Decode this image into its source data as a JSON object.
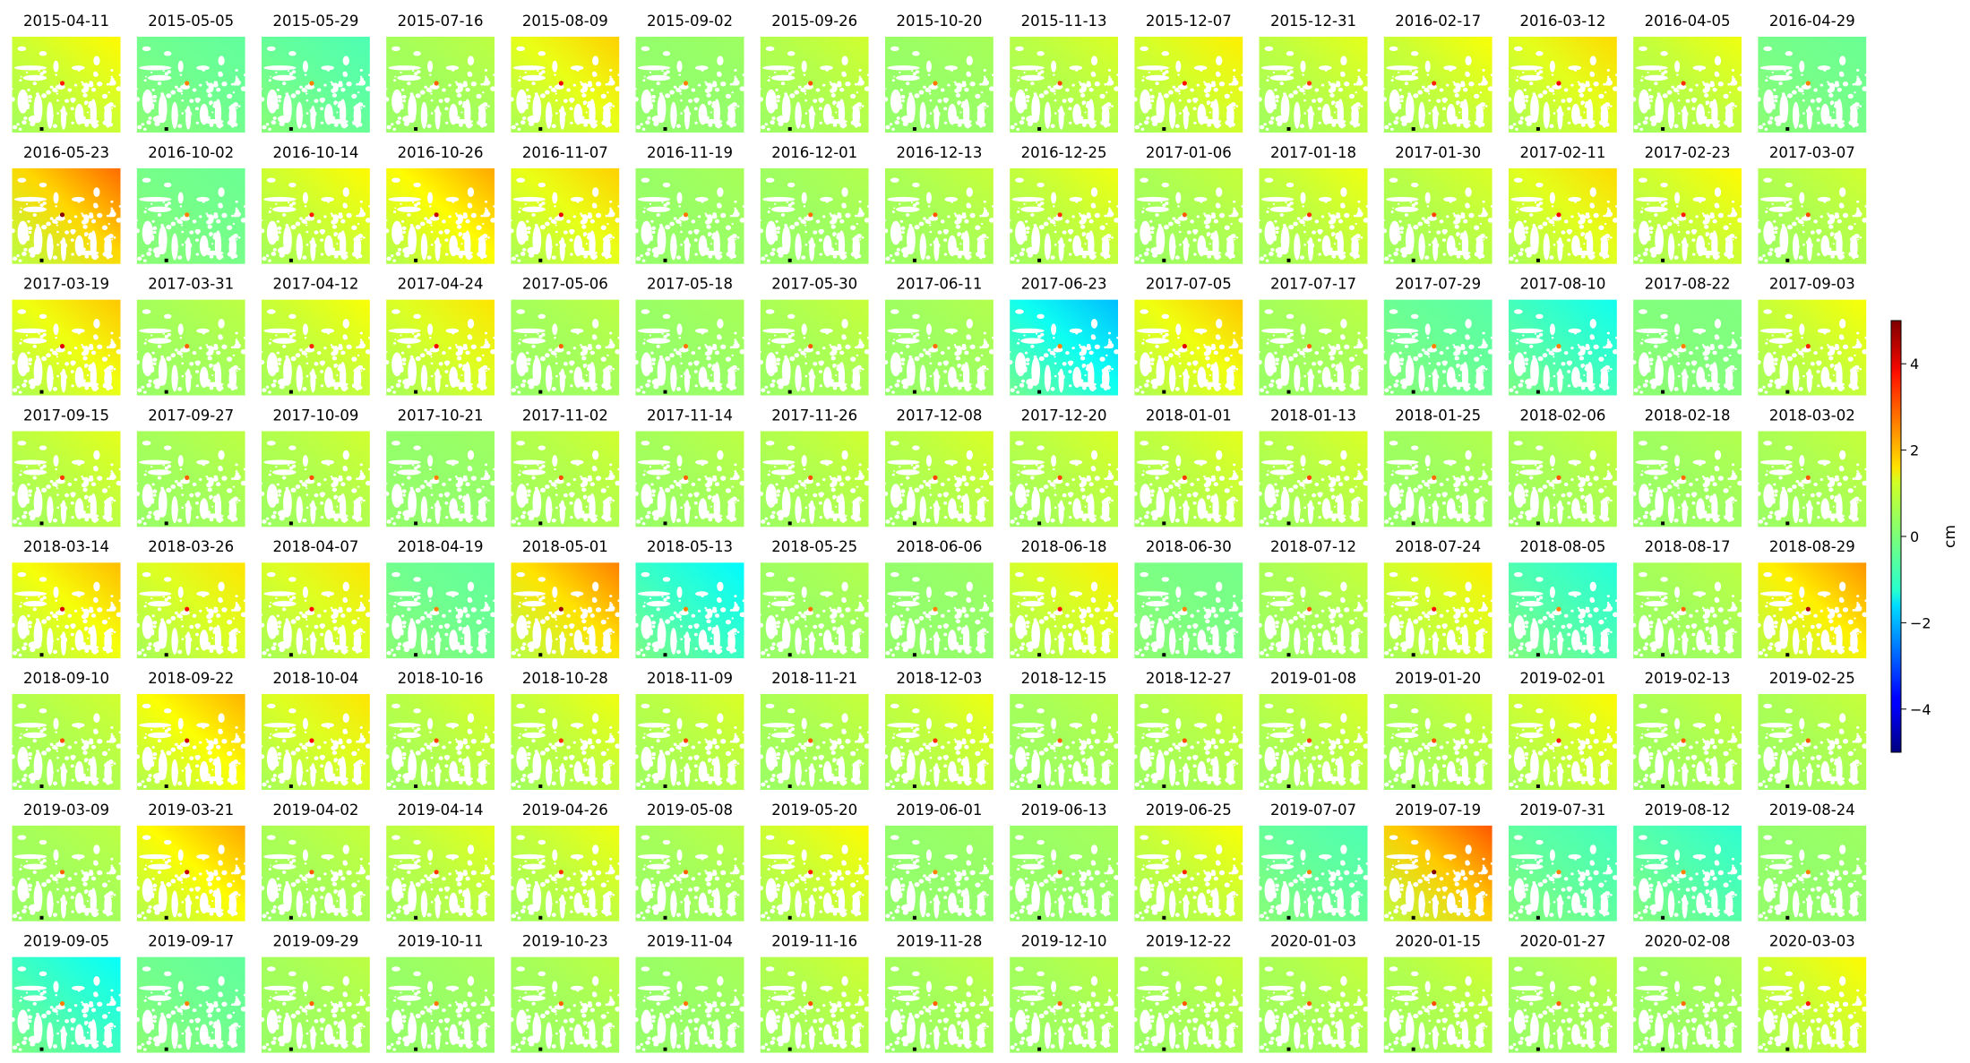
{
  "chart_data": {
    "type": "heatmap",
    "layout": {
      "rows": 8,
      "cols": 15
    },
    "panel_dates": [
      "2015-04-11",
      "2015-05-05",
      "2015-05-29",
      "2015-07-16",
      "2015-08-09",
      "2015-09-02",
      "2015-09-26",
      "2015-10-20",
      "2015-11-13",
      "2015-12-07",
      "2015-12-31",
      "2016-02-17",
      "2016-03-12",
      "2016-04-05",
      "2016-04-29",
      "2016-05-23",
      "2016-10-02",
      "2016-10-14",
      "2016-10-26",
      "2016-11-07",
      "2016-11-19",
      "2016-12-01",
      "2016-12-13",
      "2016-12-25",
      "2017-01-06",
      "2017-01-18",
      "2017-01-30",
      "2017-02-11",
      "2017-02-23",
      "2017-03-07",
      "2017-03-19",
      "2017-03-31",
      "2017-04-12",
      "2017-04-24",
      "2017-05-06",
      "2017-05-18",
      "2017-05-30",
      "2017-06-11",
      "2017-06-23",
      "2017-07-05",
      "2017-07-17",
      "2017-07-29",
      "2017-08-10",
      "2017-08-22",
      "2017-09-03",
      "2017-09-15",
      "2017-09-27",
      "2017-10-09",
      "2017-10-21",
      "2017-11-02",
      "2017-11-14",
      "2017-11-26",
      "2017-12-08",
      "2017-12-20",
      "2018-01-01",
      "2018-01-13",
      "2018-01-25",
      "2018-02-06",
      "2018-02-18",
      "2018-03-02",
      "2018-03-14",
      "2018-03-26",
      "2018-04-07",
      "2018-04-19",
      "2018-05-01",
      "2018-05-13",
      "2018-05-25",
      "2018-06-06",
      "2018-06-18",
      "2018-06-30",
      "2018-07-12",
      "2018-07-24",
      "2018-08-05",
      "2018-08-17",
      "2018-08-29",
      "2018-09-10",
      "2018-09-22",
      "2018-10-04",
      "2018-10-16",
      "2018-10-28",
      "2018-11-09",
      "2018-11-21",
      "2018-12-03",
      "2018-12-15",
      "2018-12-27",
      "2019-01-08",
      "2019-01-20",
      "2019-02-01",
      "2019-02-13",
      "2019-02-25",
      "2019-03-09",
      "2019-03-21",
      "2019-04-02",
      "2019-04-14",
      "2019-04-26",
      "2019-05-08",
      "2019-05-20",
      "2019-06-01",
      "2019-06-13",
      "2019-06-25",
      "2019-07-07",
      "2019-07-19",
      "2019-07-31",
      "2019-08-12",
      "2019-08-24",
      "2019-09-05",
      "2019-09-17",
      "2019-09-29",
      "2019-10-11",
      "2019-10-23",
      "2019-11-04",
      "2019-11-16",
      "2019-11-28",
      "2019-12-10",
      "2019-12-22",
      "2020-01-03",
      "2020-01-15",
      "2020-01-27",
      "2020-02-08",
      "2020-03-03"
    ],
    "panel_tone_cm": [
      1.0,
      -0.6,
      -0.8,
      0.3,
      1.4,
      0.0,
      0.5,
      0.1,
      0.6,
      1.1,
      0.7,
      0.9,
      1.3,
      0.8,
      -0.5,
      2.4,
      -0.5,
      1.0,
      1.8,
      1.4,
      0.1,
      0.2,
      0.4,
      0.8,
      0.4,
      0.8,
      0.6,
      1.3,
      1.0,
      0.5,
      1.5,
      0.3,
      0.9,
      1.2,
      0.3,
      0.1,
      0.4,
      0.2,
      -2.2,
      1.5,
      0.3,
      -0.7,
      -1.4,
      -0.3,
      0.9,
      0.7,
      0.3,
      0.5,
      0.0,
      0.5,
      0.3,
      0.5,
      0.6,
      0.6,
      0.7,
      0.6,
      0.2,
      0.4,
      0.2,
      0.4,
      1.6,
      1.2,
      1.2,
      -0.6,
      2.2,
      -1.6,
      0.2,
      0.0,
      1.1,
      -0.4,
      0.4,
      1.1,
      -1.2,
      0.3,
      2.0,
      0.5,
      1.7,
      1.2,
      0.6,
      0.8,
      0.6,
      0.4,
      0.8,
      0.3,
      0.5,
      0.6,
      0.5,
      1.0,
      0.4,
      0.4,
      0.3,
      1.8,
      0.4,
      0.7,
      0.8,
      0.3,
      1.0,
      0.0,
      0.1,
      0.9,
      -0.8,
      2.6,
      -0.9,
      -1.1,
      0.0,
      -1.5,
      -0.6,
      0.3,
      0.1,
      0.3,
      0.1,
      0.5,
      0.3,
      0.3,
      0.4,
      0.4,
      0.5,
      0.3,
      0.2,
      1.0
    ],
    "colormap": "jet",
    "vmin": -5,
    "vmax": 5,
    "colorbar": {
      "ticks": [
        -4,
        -2,
        0,
        2,
        4
      ],
      "tick_labels": [
        "−4",
        "−2",
        "0",
        "2",
        "4"
      ],
      "label": "cm"
    }
  }
}
